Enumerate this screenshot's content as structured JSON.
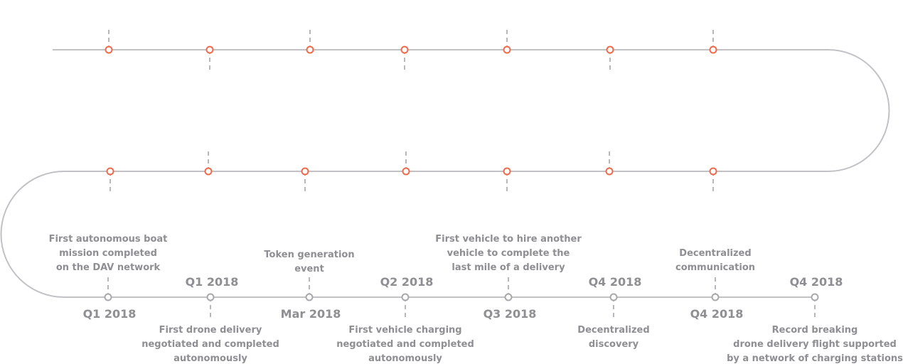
{
  "colors": {
    "track": "#c2c2c6",
    "tick": "#b8b8bc",
    "upcoming": "#f26a4b",
    "done": "#a8a8ad",
    "text": "#8e8e93",
    "background": "#ffffff"
  },
  "rows": [
    {
      "row": "top",
      "status": "upcoming",
      "nodes": [
        {
          "tick": "up"
        },
        {
          "tick": "down"
        },
        {
          "tick": "up"
        },
        {
          "tick": "down"
        },
        {
          "tick": "up"
        },
        {
          "tick": "down"
        },
        {
          "tick": "up"
        }
      ]
    },
    {
      "row": "middle",
      "status": "upcoming",
      "nodes": [
        {
          "tick": "down"
        },
        {
          "tick": "up"
        },
        {
          "tick": "down"
        },
        {
          "tick": "up"
        },
        {
          "tick": "down"
        },
        {
          "tick": "up"
        },
        {
          "tick": "down"
        }
      ]
    }
  ],
  "milestones": [
    {
      "date": "Q1 2018",
      "description": [
        "First autonomous boat",
        "mission completed",
        "on the DAV network"
      ]
    },
    {
      "date": "Q1 2018",
      "description": [
        "First drone delivery",
        "negotiated and completed",
        "autonomously"
      ]
    },
    {
      "date": "Mar 2018",
      "description": [
        "Token generation",
        "event"
      ]
    },
    {
      "date": "Q2 2018",
      "description": [
        "First vehicle charging",
        "negotiated and completed",
        "autonomously"
      ]
    },
    {
      "date": "Q3 2018",
      "description": [
        "First vehicle to hire another",
        "vehicle to complete the",
        "last mile of a delivery"
      ]
    },
    {
      "date": "Q4 2018",
      "description": [
        "Decentralized",
        "discovery"
      ]
    },
    {
      "date": "Q4 2018",
      "description": [
        "Decentralized",
        "communication"
      ]
    },
    {
      "date": "Q4 2018",
      "description": [
        "Record breaking",
        "drone delivery flight supported",
        "by a network of charging stations"
      ]
    }
  ]
}
